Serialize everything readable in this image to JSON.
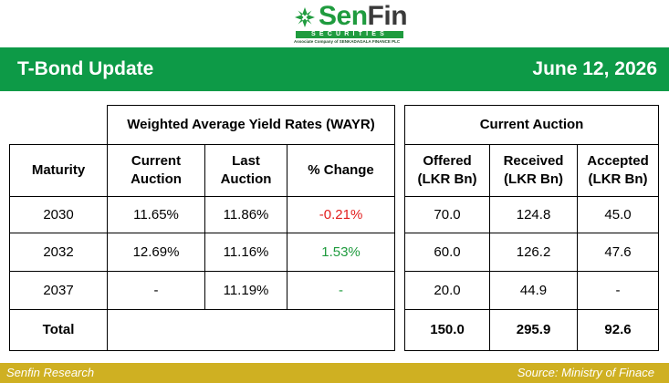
{
  "logo": {
    "word_sen": "Sen",
    "word_fin": "Fin",
    "bar_text": "SECURITIES",
    "tagline": "Associate Company of  SENKADAGALA FINANCE PLC",
    "brand_color": "#1f9b3e"
  },
  "banner": {
    "title": "T-Bond Update",
    "date": "June 12, 2026",
    "background": "#0d9a47"
  },
  "table": {
    "group_wayr": "Weighted Average Yield Rates (WAYR)",
    "group_auction": "Current Auction",
    "headers": {
      "maturity": "Maturity",
      "current_auction_l1": "Current",
      "current_auction_l2": "Auction",
      "last_auction_l1": "Last",
      "last_auction_l2": "Auction",
      "pct_change": "% Change",
      "offered_l1": "Offered",
      "offered_l2": "(LKR Bn)",
      "received_l1": "Received",
      "received_l2": "(LKR Bn)",
      "accepted_l1": "Accepted",
      "accepted_l2": "(LKR Bn)"
    },
    "rows": [
      {
        "maturity": "2030",
        "current": "11.65%",
        "last": "11.86%",
        "change": "-0.21%",
        "offered": "70.0",
        "received": "124.8",
        "accepted": "45.0"
      },
      {
        "maturity": "2032",
        "current": "12.69%",
        "last": "11.16%",
        "change": "1.53%",
        "offered": "60.0",
        "received": "126.2",
        "accepted": "47.6"
      },
      {
        "maturity": "2037",
        "current": "-",
        "last": "11.19%",
        "change": "-",
        "offered": "20.0",
        "received": "44.9",
        "accepted": "-"
      }
    ],
    "total": {
      "label": "Total",
      "offered": "150.0",
      "received": "295.9",
      "accepted": "92.6"
    },
    "colors": {
      "negative": "#e21d1d",
      "positive": "#1f9b3e"
    }
  },
  "footer": {
    "left": "Senfin Research",
    "right": "Source: Ministry of Finace",
    "background": "#cfb022"
  }
}
